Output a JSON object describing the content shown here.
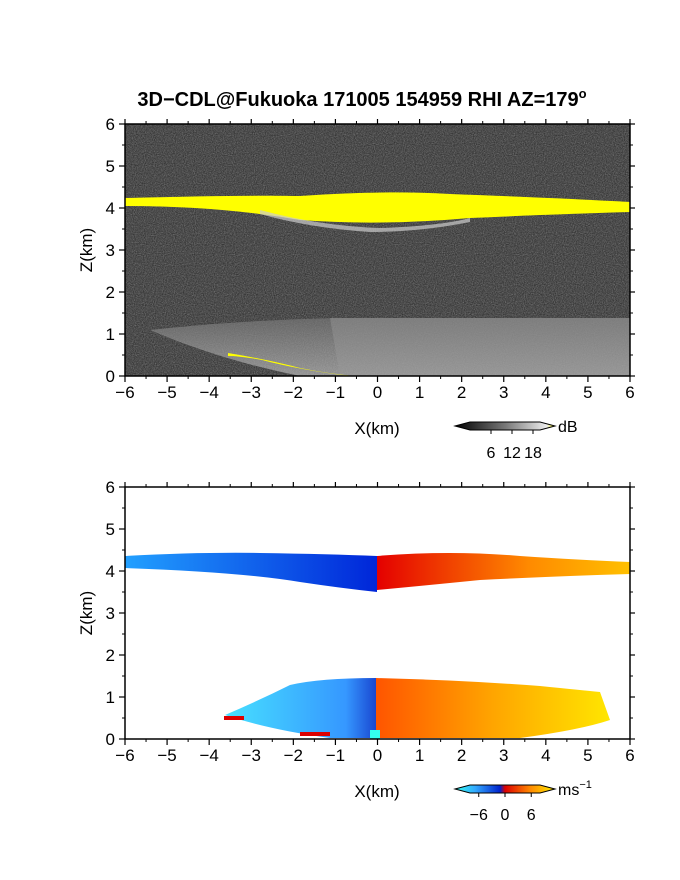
{
  "title": "3D−CDL@Fukuoka 171005 154959 RHI AZ=179",
  "title_sup": "o",
  "colors": {
    "panel_bg_top": "#2a2a2a",
    "cloud_layer_top": "#ffff00",
    "cloud_layer_bottom": "#ffff00",
    "neg_strong": "#0033dd",
    "neg_weak": "#33ccff",
    "zero": "#dd0000",
    "pos_weak": "#ff8800",
    "pos_strong": "#ffee00"
  },
  "chart_data": [
    {
      "type": "heatmap",
      "panel": "top",
      "quantity": "backscatter intensity",
      "xlabel": "X(km)",
      "ylabel": "Z(km)",
      "xlim": [
        -6,
        6
      ],
      "ylim": [
        0,
        6
      ],
      "xticks": [
        "−6",
        "−5",
        "−4",
        "−3",
        "−2",
        "−1",
        "0",
        "1",
        "2",
        "3",
        "4",
        "5",
        "6"
      ],
      "yticks": [
        "0",
        "1",
        "2",
        "3",
        "4",
        "5",
        "6"
      ],
      "colorbar": {
        "ticks": [
          "6",
          "12",
          "18"
        ],
        "unit": "dB",
        "range": [
          0,
          20
        ]
      },
      "features": [
        {
          "name": "cloud layer",
          "x_range": [
            -6,
            6
          ],
          "z_center": 4.1,
          "z_thickness": 0.3,
          "value_dB": 20
        },
        {
          "name": "boundary layer echo",
          "x_range": [
            -1.5,
            6
          ],
          "z_top": 1.3,
          "value_dB": 12
        },
        {
          "name": "low-level strong return",
          "x_range": [
            -3.5,
            -0.8
          ],
          "z_range": [
            0.5,
            0.0
          ],
          "value_dB": 20
        }
      ]
    },
    {
      "type": "heatmap",
      "panel": "bottom",
      "quantity": "radial velocity",
      "xlabel": "X(km)",
      "ylabel": "Z(km)",
      "xlim": [
        -6,
        6
      ],
      "ylim": [
        0,
        6
      ],
      "xticks": [
        "−6",
        "−5",
        "−4",
        "−3",
        "−2",
        "−1",
        "0",
        "1",
        "2",
        "3",
        "4",
        "5",
        "6"
      ],
      "yticks": [
        "0",
        "1",
        "2",
        "3",
        "4",
        "5",
        "6"
      ],
      "colorbar": {
        "ticks": [
          "−6",
          "0",
          "6"
        ],
        "unit": "ms",
        "unit_sup": "−1",
        "range": [
          -8,
          8
        ]
      },
      "features": [
        {
          "name": "cloud layer negative",
          "x_range": [
            -6,
            0
          ],
          "z_center": 4.1,
          "velocity": -6
        },
        {
          "name": "cloud layer positive",
          "x_range": [
            0,
            6
          ],
          "z_center": 4.1,
          "velocity": 6
        },
        {
          "name": "boundary layer negative",
          "x_range": [
            -3.8,
            0
          ],
          "z_top": 1.4,
          "velocity": -5
        },
        {
          "name": "boundary layer positive",
          "x_range": [
            0,
            5.5
          ],
          "z_top": 1.3,
          "velocity": 6
        }
      ]
    }
  ]
}
